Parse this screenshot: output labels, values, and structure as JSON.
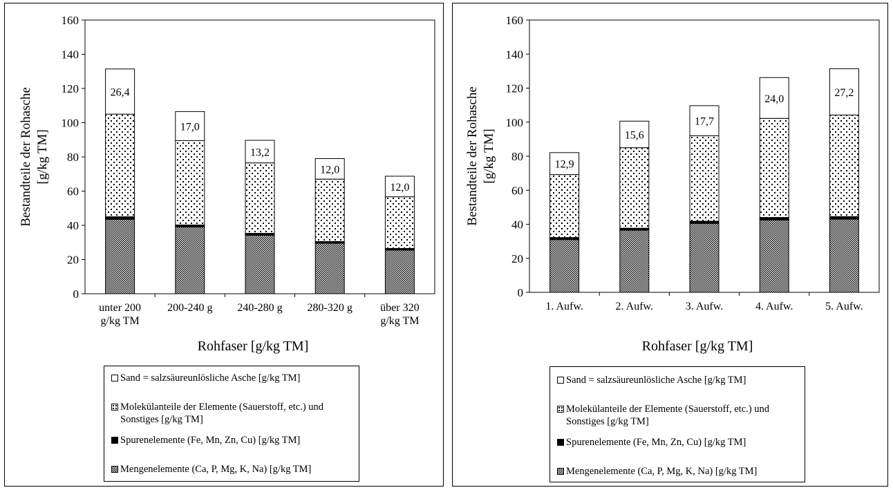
{
  "colors": {
    "background": "#ffffff",
    "stroke": "#000000"
  },
  "chart_data": [
    {
      "type": "bar",
      "stacked": true,
      "title": "",
      "xlabel": "Rohfaser [g/kg TM]",
      "ylabel": "Bestandteile der Rohasche [g/kg TM]",
      "ylabel_lines": [
        "Bestandteile der Rohasche",
        "[g/kg TM]"
      ],
      "ylim": [
        0,
        160
      ],
      "yticks": [
        0,
        20,
        40,
        60,
        80,
        100,
        120,
        140,
        160
      ],
      "grid": false,
      "categories": [
        "unter 200 g/kg TM",
        "200-240 g",
        "240-280 g",
        "280-320 g",
        "über 320 g/kg TM"
      ],
      "category_lines": [
        [
          "unter 200",
          "g/kg TM"
        ],
        [
          "200-240 g"
        ],
        [
          "240-280 g"
        ],
        [
          "280-320 g"
        ],
        [
          "über 320",
          "g/kg TM"
        ]
      ],
      "series": [
        {
          "name": "Mengenelemente (Ca, P, Mg, K, Na) [g/kg TM]",
          "pattern": "checker",
          "values": [
            43.5,
            39.0,
            34.2,
            29.5,
            25.5
          ]
        },
        {
          "name": "Spurenelemente (Fe, Mn, Zn, Cu) [g/kg TM]",
          "pattern": "solid",
          "values": [
            1.5,
            1.2,
            1.1,
            1.0,
            1.0
          ]
        },
        {
          "name": "Molekülanteile der Elemente (Sauerstoff, etc.) und Sonstiges [g/kg TM]",
          "pattern": "dots",
          "values": [
            60.0,
            49.3,
            41.2,
            36.5,
            30.2
          ]
        },
        {
          "name": "Sand = salzsäureunlösliche Asche [g/kg TM]",
          "pattern": "white",
          "values": [
            26.4,
            17.0,
            13.2,
            12.0,
            12.0
          ]
        }
      ],
      "data_labels": [
        "26,4",
        "17,0",
        "13,2",
        "12,0",
        "12,0"
      ],
      "legend_position": "bottom",
      "legend_order": [
        3,
        2,
        1,
        0
      ]
    },
    {
      "type": "bar",
      "stacked": true,
      "title": "",
      "xlabel": "Rohfaser [g/kg TM]",
      "ylabel": "Bestandteile der Rohasche [g/kg TM]",
      "ylabel_lines": [
        "Bestandteile der Rohasche",
        "[g/kg TM]"
      ],
      "ylim": [
        0,
        160
      ],
      "yticks": [
        0,
        20,
        40,
        60,
        80,
        100,
        120,
        140,
        160
      ],
      "grid": false,
      "categories": [
        "1. Aufw.",
        "2. Aufw.",
        "3. Aufw.",
        "4. Aufw.",
        "5. Aufw."
      ],
      "category_lines": [
        [
          "1. Aufw."
        ],
        [
          "2. Aufw."
        ],
        [
          "3. Aufw."
        ],
        [
          "4. Aufw."
        ],
        [
          "5. Aufw."
        ]
      ],
      "series": [
        {
          "name": "Mengenelemente (Ca, P, Mg, K, Na) [g/kg TM]",
          "pattern": "checker",
          "values": [
            31.0,
            36.5,
            40.5,
            42.5,
            43.0
          ]
        },
        {
          "name": "Spurenelemente (Fe, Mn, Zn, Cu) [g/kg TM]",
          "pattern": "solid",
          "values": [
            1.2,
            1.2,
            1.3,
            1.5,
            1.5
          ]
        },
        {
          "name": "Molekülanteile der Elemente (Sauerstoff, etc.) und Sonstiges [g/kg TM]",
          "pattern": "dots",
          "values": [
            37.0,
            47.3,
            50.2,
            58.2,
            59.7
          ]
        },
        {
          "name": "Sand = salzsäureunlösliche Asche [g/kg TM]",
          "pattern": "white",
          "values": [
            12.9,
            15.6,
            17.7,
            24.0,
            27.2
          ]
        }
      ],
      "data_labels": [
        "12,9",
        "15,6",
        "17,7",
        "24,0",
        "27,2"
      ],
      "legend_position": "bottom",
      "legend_order": [
        3,
        2,
        1,
        0
      ]
    }
  ]
}
